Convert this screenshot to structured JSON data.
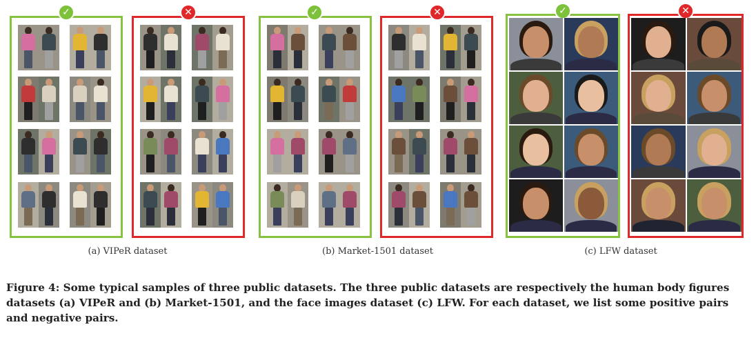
{
  "panels": [
    {
      "id": "viper-positive",
      "kind": "positive",
      "badge": "✓"
    },
    {
      "id": "viper-negative",
      "kind": "negative",
      "badge": "✕"
    },
    {
      "id": "market-positive",
      "kind": "positive",
      "badge": "✓"
    },
    {
      "id": "market-negative",
      "kind": "negative",
      "badge": "✕"
    },
    {
      "id": "lfw-positive",
      "kind": "positive",
      "badge": "✓"
    },
    {
      "id": "lfw-negative",
      "kind": "negative",
      "badge": "✕"
    }
  ],
  "captions": {
    "viper": "(a)  VIPeR dataset",
    "market": "(b)  Market-1501 dataset",
    "lfw": "(c)  LFW dataset"
  },
  "figure_caption": "Figure 4: Some typical samples of three public datasets. The three public datasets are respectively the human body figures datasets (a) VIPeR and (b) Market-1501, and the face images dataset (c) LFW. For each dataset, we list some positive pairs and negative pairs.",
  "colors": {
    "positive_border": "#86c23f",
    "negative_border": "#e0282b",
    "positive_badge": "#7ec13b",
    "negative_badge": "#e0282b"
  }
}
